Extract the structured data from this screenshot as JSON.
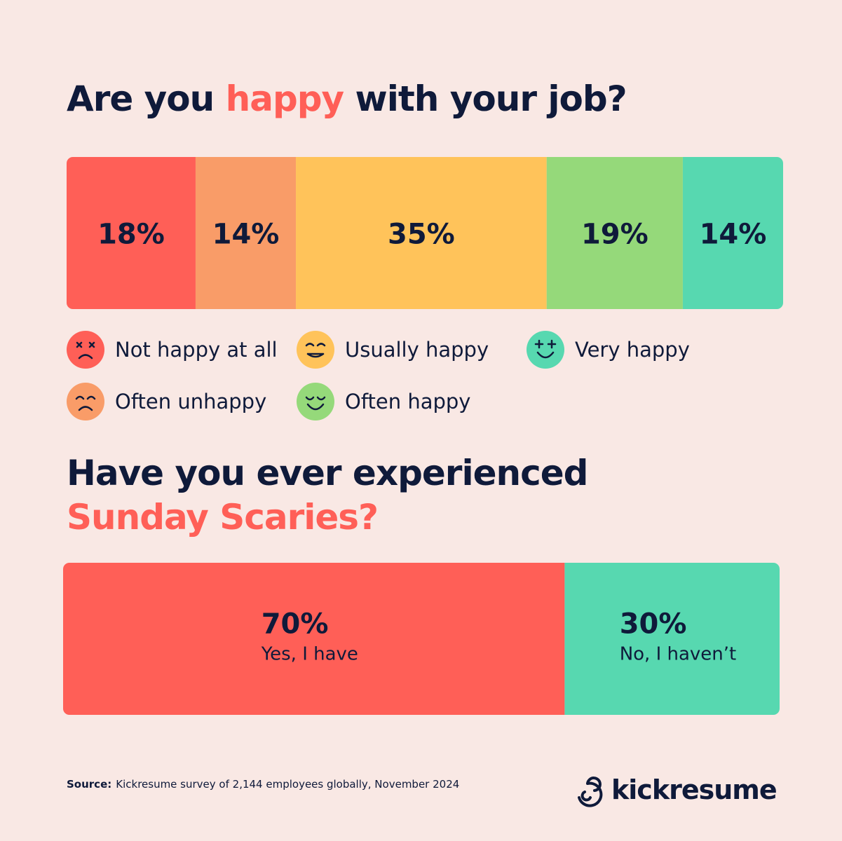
{
  "chart_data": [
    {
      "type": "stacked-bar",
      "orientation": "horizontal",
      "title": "Are you happy with your job?",
      "title_highlight": "happy",
      "highlight_newline": false,
      "xlim": [
        0,
        100
      ],
      "label_align": "center",
      "legend": "bottom",
      "series": [
        {
          "name": "Not happy at all",
          "color": "#ff5f57",
          "values": [
            18
          ],
          "value_labels": [
            "18%"
          ]
        },
        {
          "name": "Often unhappy",
          "color": "#f99c68",
          "values": [
            14
          ],
          "value_labels": [
            "14%"
          ]
        },
        {
          "name": "Usually happy",
          "color": "#ffc35a",
          "values": [
            35
          ],
          "value_labels": [
            "35%"
          ]
        },
        {
          "name": "Often happy",
          "color": "#95d97a",
          "values": [
            19
          ],
          "value_labels": [
            "19%"
          ]
        },
        {
          "name": "Very happy",
          "color": "#57d8b0",
          "values": [
            14
          ],
          "value_labels": [
            "14%"
          ]
        }
      ]
    },
    {
      "type": "stacked-bar",
      "orientation": "horizontal",
      "title": "Have you ever experienced Sunday Scaries?",
      "title_highlight": "Sunday Scaries?",
      "highlight_newline": true,
      "xlim": [
        0,
        100
      ],
      "label_align": "block",
      "legend": "inside",
      "series": [
        {
          "name": "Yes, I have",
          "color": "#ff5f57",
          "values": [
            70
          ],
          "value_labels": [
            "70%"
          ]
        },
        {
          "name": "No, I haven’t",
          "color": "#57d8b0",
          "values": [
            30
          ],
          "value_labels": [
            "30%"
          ]
        }
      ]
    }
  ],
  "footer": {
    "source_label": "Source:",
    "source": "Kickresume survey of 2,144 employees globally, November 2024",
    "brand": "kickresume"
  }
}
